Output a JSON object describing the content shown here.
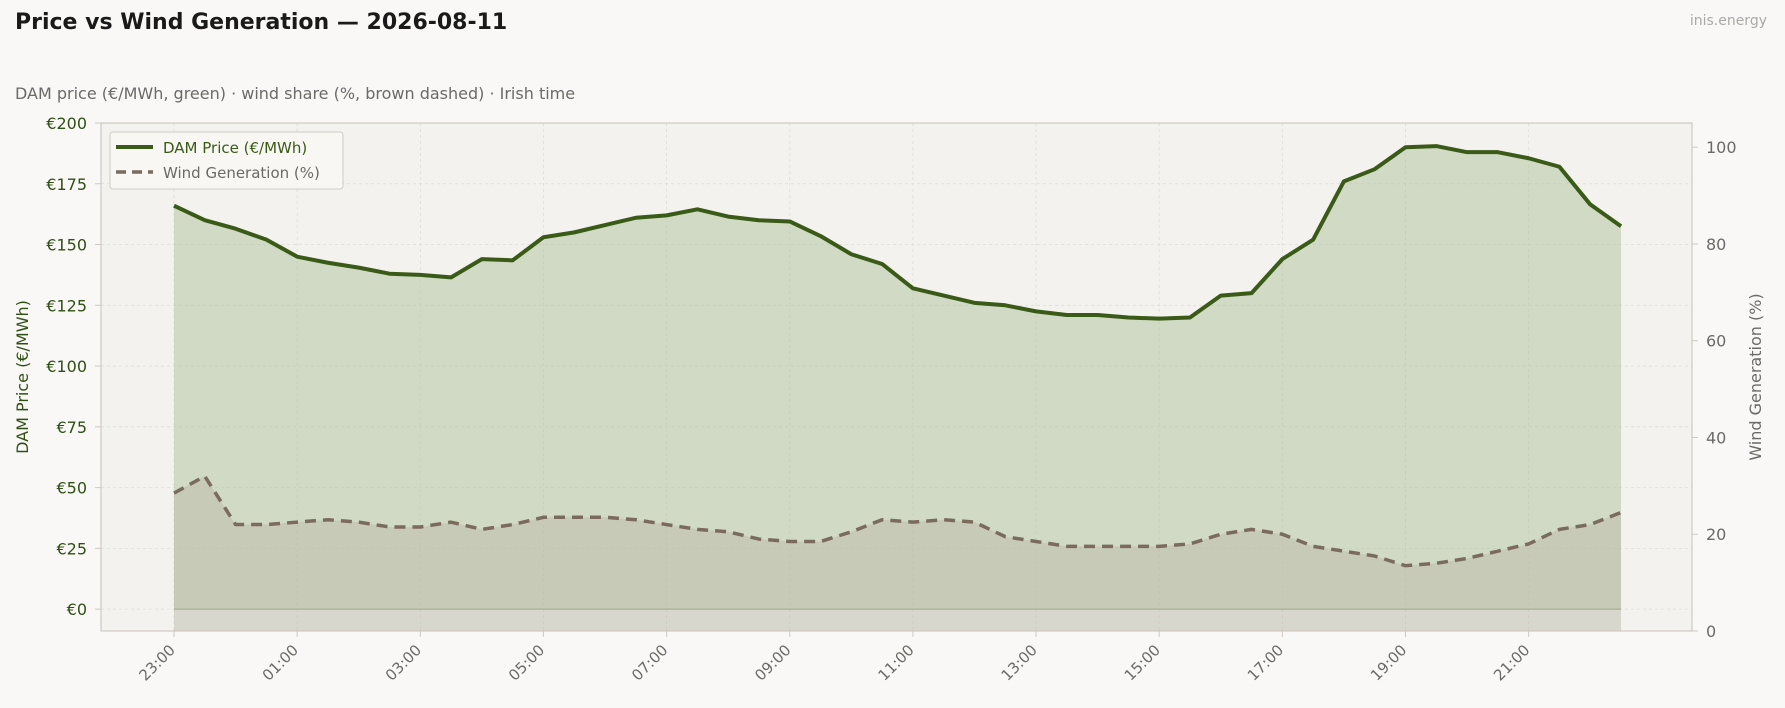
{
  "header": {
    "title": "Price vs Wind Generation — 2026-08-11",
    "brand": "inis.energy",
    "subtitle": "DAM price (€/MWh, green)  ·  wind share (%, brown dashed)  ·  Irish time"
  },
  "colors": {
    "price": "#3a5a17",
    "price_fill": "#b5c7a0",
    "wind": "#7b6b5d",
    "wind_fill": "#b8b6a6",
    "plot_bg": "#f3f2ef",
    "grid": "#dedcd6",
    "frame": "#cfc9c0",
    "left_axis_text": "#2f4f14",
    "right_axis_text": "#6c6a66"
  },
  "chart_data": {
    "type": "line",
    "x": [
      "23:00",
      "23:30",
      "00:00",
      "00:30",
      "01:00",
      "01:30",
      "02:00",
      "02:30",
      "03:00",
      "03:30",
      "04:00",
      "04:30",
      "05:00",
      "05:30",
      "06:00",
      "06:30",
      "07:00",
      "07:30",
      "08:00",
      "08:30",
      "09:00",
      "09:30",
      "10:00",
      "10:30",
      "11:00",
      "11:30",
      "12:00",
      "12:30",
      "13:00",
      "13:30",
      "14:00",
      "14:30",
      "15:00",
      "15:30",
      "16:00",
      "16:30",
      "17:00",
      "17:30",
      "18:00",
      "18:30",
      "19:00",
      "19:30",
      "20:00",
      "20:30",
      "21:00",
      "21:30",
      "22:00",
      "22:30"
    ],
    "xticks": [
      "23:00",
      "01:00",
      "03:00",
      "05:00",
      "07:00",
      "09:00",
      "11:00",
      "13:00",
      "15:00",
      "17:00",
      "19:00",
      "21:00"
    ],
    "series": [
      {
        "name": "DAM Price (€/MWh)",
        "axis": "left",
        "style": "solid",
        "values": [
          166,
          160,
          156.5,
          152,
          145,
          142.5,
          140.5,
          138,
          137.5,
          136.5,
          144,
          143.5,
          153,
          155,
          158,
          161,
          162,
          164.5,
          161.5,
          160,
          159.5,
          153.5,
          146,
          142,
          132,
          129,
          126,
          125,
          122.5,
          121,
          121,
          120,
          119.5,
          120,
          129,
          130,
          144,
          152,
          176,
          181,
          190,
          190.5,
          188,
          188,
          185.5,
          182,
          166.5,
          157.5
        ]
      },
      {
        "name": "Wind Generation (%)",
        "axis": "right",
        "style": "dashed",
        "values": [
          28.5,
          32,
          22,
          22,
          22.5,
          23,
          22.5,
          21.5,
          21.5,
          22.5,
          21,
          22,
          23.5,
          23.5,
          23.5,
          23,
          22,
          21,
          20.5,
          19,
          18.5,
          18.5,
          20.5,
          23,
          22.5,
          23,
          22.5,
          19.5,
          18.5,
          17.5,
          17.5,
          17.5,
          17.5,
          18,
          20,
          21,
          20,
          17.5,
          16.5,
          15.5,
          13.5,
          14,
          15,
          16.5,
          18,
          21,
          22,
          24.5
        ]
      }
    ],
    "ylabel": "DAM Price (€/MWh)",
    "y2label": "Wind Generation (%)",
    "ylim": [
      -9,
      200
    ],
    "y2lim": [
      0,
      105
    ],
    "yticks": [
      "€0",
      "€25",
      "€50",
      "€75",
      "€100",
      "€125",
      "€150",
      "€175",
      "€200"
    ],
    "ytick_values": [
      0,
      25,
      50,
      75,
      100,
      125,
      150,
      175,
      200
    ],
    "y2ticks": [
      "0",
      "20",
      "40",
      "60",
      "80",
      "100"
    ],
    "y2tick_values": [
      0,
      20,
      40,
      60,
      80,
      100
    ],
    "legend": "top-left",
    "grid": true
  }
}
